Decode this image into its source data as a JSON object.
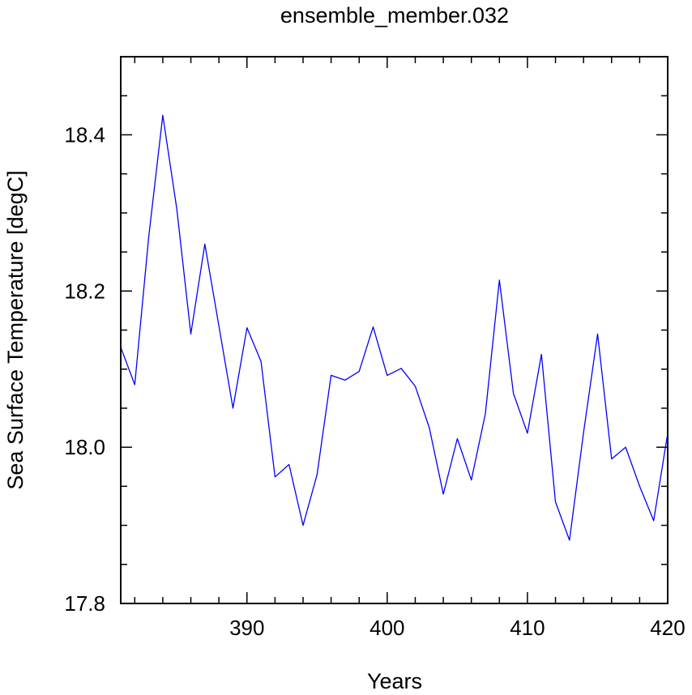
{
  "chart_data": {
    "type": "line",
    "title": "ensemble_member.032",
    "xlabel": "Years",
    "ylabel": "Sea Surface Temperature [degC]",
    "xlim": [
      381,
      420
    ],
    "ylim": [
      17.8,
      18.5
    ],
    "x_ticks": [
      {
        "value": 390,
        "label": "390"
      },
      {
        "value": 400,
        "label": "400"
      },
      {
        "value": 410,
        "label": "410"
      },
      {
        "value": 420,
        "label": "420"
      }
    ],
    "y_ticks": [
      {
        "value": 17.8,
        "label": "17.8"
      },
      {
        "value": 18.0,
        "label": "18.0"
      },
      {
        "value": 18.2,
        "label": "18.2"
      },
      {
        "value": 18.4,
        "label": "18.4"
      }
    ],
    "grid": false,
    "series": [
      {
        "color": "#0000ff",
        "x": [
          381,
          382,
          383,
          384,
          385,
          386,
          387,
          388,
          389,
          390,
          391,
          392,
          393,
          394,
          395,
          396,
          397,
          398,
          399,
          400,
          401,
          402,
          403,
          404,
          405,
          406,
          407,
          408,
          409,
          410,
          411,
          412,
          413,
          414,
          415,
          416,
          417,
          418,
          419,
          420
        ],
        "y": [
          18.128,
          18.08,
          18.27,
          18.425,
          18.305,
          18.145,
          18.26,
          18.155,
          18.05,
          18.153,
          18.11,
          17.962,
          17.978,
          17.9,
          17.965,
          18.092,
          18.086,
          18.097,
          18.154,
          18.092,
          18.101,
          18.078,
          18.025,
          17.94,
          18.011,
          17.958,
          18.043,
          18.214,
          18.069,
          18.018,
          18.119,
          17.93,
          17.881,
          18.019,
          18.145,
          17.985,
          18.0,
          17.95,
          17.906,
          18.018
        ]
      }
    ]
  }
}
